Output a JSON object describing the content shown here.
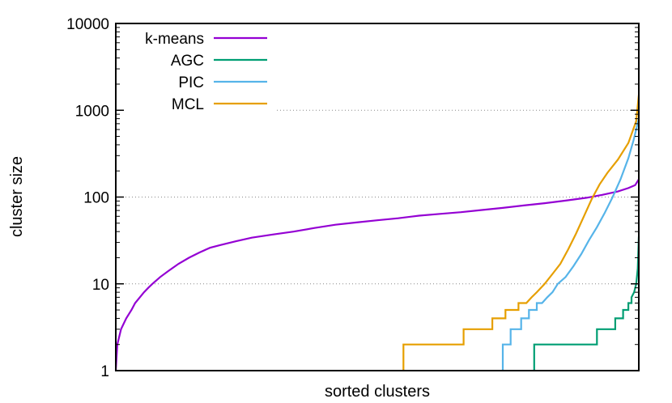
{
  "chart_data": {
    "type": "line",
    "title": "",
    "xlabel": "sorted clusters",
    "ylabel": "cluster size",
    "yscale": "log",
    "ylim": [
      1,
      10000
    ],
    "xlim": [
      0,
      100
    ],
    "y_ticks": [
      "1",
      "10",
      "100",
      "1000",
      "10000"
    ],
    "x_ticks": [],
    "grid": "horizontal dotted at 10, 100, 1000",
    "legend_position": "top-left",
    "series": [
      {
        "name": "k-means",
        "color": "#9400d3",
        "points": [
          [
            0,
            1
          ],
          [
            0.3,
            2
          ],
          [
            1,
            3
          ],
          [
            2,
            4
          ],
          [
            3,
            5
          ],
          [
            3.7,
            6
          ],
          [
            4.6,
            7
          ],
          [
            5.4,
            8
          ],
          [
            6.2,
            9
          ],
          [
            7,
            10
          ],
          [
            8.5,
            12
          ],
          [
            10,
            14
          ],
          [
            12,
            17
          ],
          [
            14,
            20
          ],
          [
            16,
            23
          ],
          [
            18,
            26
          ],
          [
            20,
            28
          ],
          [
            23,
            31
          ],
          [
            26,
            34
          ],
          [
            30,
            37
          ],
          [
            34,
            40
          ],
          [
            38,
            44
          ],
          [
            42,
            48
          ],
          [
            46,
            51
          ],
          [
            50,
            54
          ],
          [
            54,
            57
          ],
          [
            58,
            61
          ],
          [
            62,
            64
          ],
          [
            66,
            67
          ],
          [
            70,
            71
          ],
          [
            74,
            75
          ],
          [
            78,
            80
          ],
          [
            82,
            85
          ],
          [
            86,
            91
          ],
          [
            90,
            98
          ],
          [
            93,
            106
          ],
          [
            96,
            116
          ],
          [
            98,
            127
          ],
          [
            99.3,
            137
          ],
          [
            100,
            160
          ]
        ]
      },
      {
        "name": "AGC",
        "color": "#009e73",
        "points": [
          [
            80,
            1
          ],
          [
            80,
            2
          ],
          [
            92,
            2
          ],
          [
            92,
            3
          ],
          [
            95.5,
            3
          ],
          [
            95.5,
            4
          ],
          [
            97,
            4
          ],
          [
            97,
            5
          ],
          [
            98,
            5
          ],
          [
            98,
            6
          ],
          [
            98.6,
            6
          ],
          [
            98.6,
            7
          ],
          [
            99.1,
            8
          ],
          [
            99.5,
            10
          ],
          [
            99.8,
            15
          ],
          [
            100,
            35
          ]
        ]
      },
      {
        "name": "PIC",
        "color": "#56b4e9",
        "points": [
          [
            74,
            1
          ],
          [
            74,
            2
          ],
          [
            75.5,
            2
          ],
          [
            75.5,
            3
          ],
          [
            77.5,
            3
          ],
          [
            77.5,
            4
          ],
          [
            79,
            4
          ],
          [
            79,
            5
          ],
          [
            80.5,
            5
          ],
          [
            80.5,
            6
          ],
          [
            81.5,
            6
          ],
          [
            82.5,
            7
          ],
          [
            83.5,
            8
          ],
          [
            84.5,
            10
          ],
          [
            86,
            12
          ],
          [
            87.5,
            16
          ],
          [
            89,
            22
          ],
          [
            90.5,
            32
          ],
          [
            92,
            45
          ],
          [
            93.5,
            66
          ],
          [
            95,
            100
          ],
          [
            96.5,
            160
          ],
          [
            98,
            280
          ],
          [
            99,
            450
          ],
          [
            100,
            800
          ]
        ]
      },
      {
        "name": "MCL",
        "color": "#e69f00",
        "points": [
          [
            55,
            1
          ],
          [
            55,
            2
          ],
          [
            66.5,
            2
          ],
          [
            66.5,
            3
          ],
          [
            72,
            3
          ],
          [
            72,
            4
          ],
          [
            74.5,
            4
          ],
          [
            74.5,
            5
          ],
          [
            77,
            5
          ],
          [
            77,
            6
          ],
          [
            78.5,
            6
          ],
          [
            79.5,
            7
          ],
          [
            80.5,
            8
          ],
          [
            82,
            10
          ],
          [
            83.5,
            13
          ],
          [
            85,
            17
          ],
          [
            86.5,
            25
          ],
          [
            88,
            38
          ],
          [
            89.5,
            60
          ],
          [
            91,
            95
          ],
          [
            92.5,
            140
          ],
          [
            94,
            190
          ],
          [
            96,
            270
          ],
          [
            98,
            420
          ],
          [
            99.5,
            750
          ],
          [
            100,
            1500
          ]
        ]
      }
    ]
  }
}
